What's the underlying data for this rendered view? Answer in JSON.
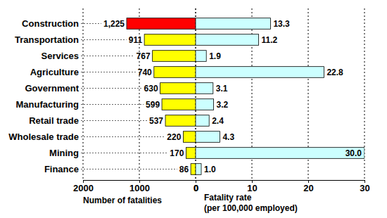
{
  "chart_data": [
    {
      "type": "bar",
      "orientation": "horizontal",
      "categories": [
        "Construction",
        "Transportation",
        "Services",
        "Agriculture",
        "Government",
        "Manufacturing",
        "Retail trade",
        "Wholesale trade",
        "Mining",
        "Finance"
      ],
      "values": [
        1225,
        911,
        767,
        740,
        630,
        599,
        537,
        220,
        170,
        86
      ],
      "value_labels": [
        "1,225",
        "911",
        "767",
        "740",
        "630",
        "599",
        "537",
        "220",
        "170",
        "86"
      ],
      "colors": [
        "#ff0000",
        "#ffff00",
        "#ffff00",
        "#ffff00",
        "#ffff00",
        "#ffff00",
        "#ffff00",
        "#ffff00",
        "#ffff00",
        "#ffff00"
      ],
      "xlabel": "Number of fatalities",
      "xlim": [
        2000,
        0
      ],
      "xticks": [
        2000,
        1000,
        0
      ],
      "grid": true,
      "data_labels": true
    },
    {
      "type": "bar",
      "orientation": "horizontal",
      "categories": [
        "Construction",
        "Transportation",
        "Services",
        "Agriculture",
        "Government",
        "Manufacturing",
        "Retail trade",
        "Wholesale trade",
        "Mining",
        "Finance"
      ],
      "values": [
        13.3,
        11.2,
        1.9,
        22.8,
        3.1,
        3.2,
        2.4,
        4.3,
        30.0,
        1.0
      ],
      "value_labels": [
        "13.3",
        "11.2",
        "1.9",
        "22.8",
        "3.1",
        "3.2",
        "2.4",
        "4.3",
        "30.0",
        "1.0"
      ],
      "color": "#ccffff",
      "xlabel": "Fatality rate\n(per 100,000 employed)",
      "xlim": [
        0,
        30
      ],
      "xticks": [
        0,
        10,
        20,
        30
      ],
      "grid": true,
      "data_labels": true
    }
  ]
}
